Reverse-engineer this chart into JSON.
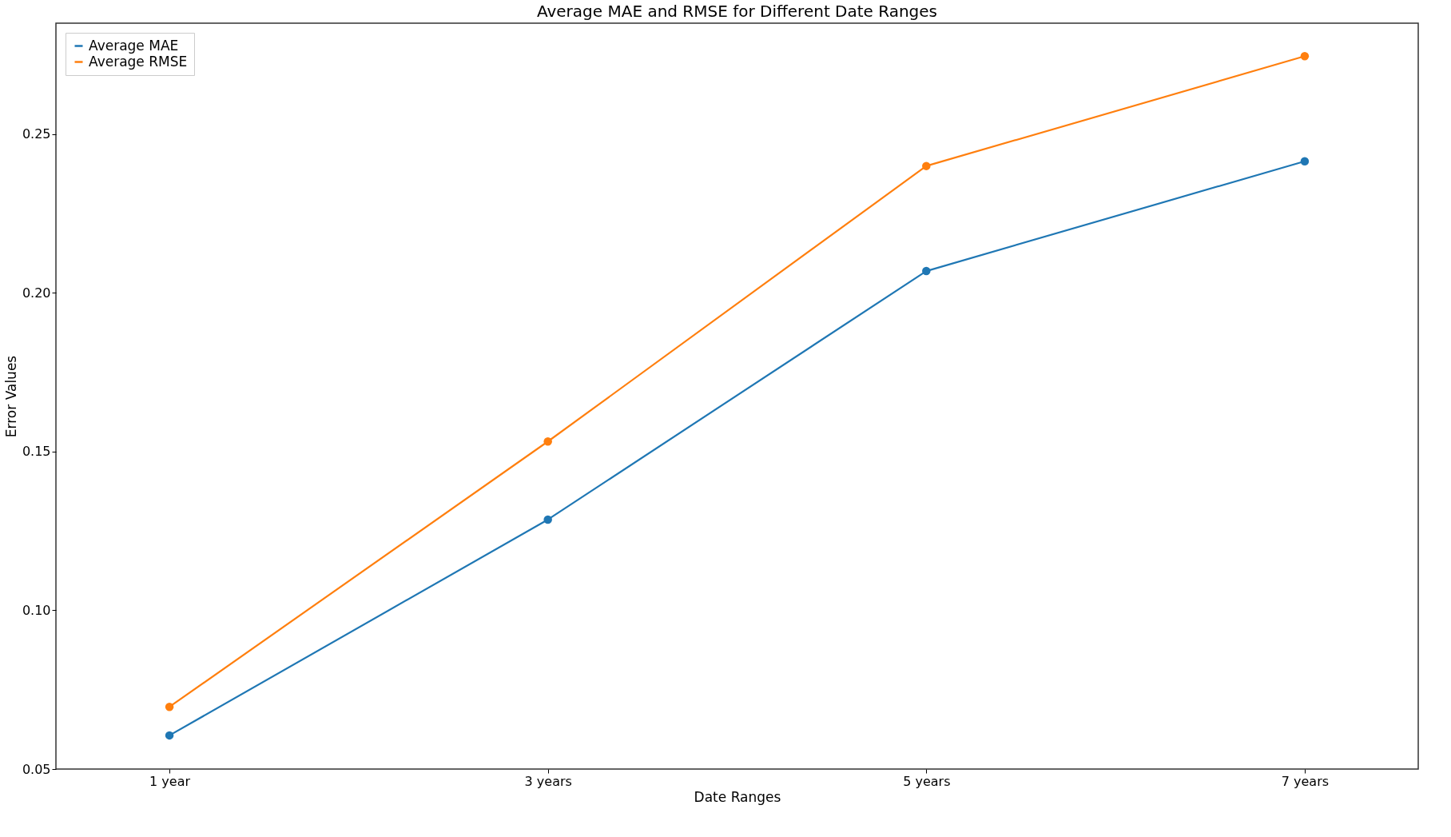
{
  "chart_data": {
    "type": "line",
    "title": "Average MAE and RMSE for Different Date Ranges",
    "xlabel": "Date Ranges",
    "ylabel": "Error Values",
    "categories": [
      "1 year",
      "3 years",
      "5 years",
      "7 years"
    ],
    "series": [
      {
        "name": "Average MAE",
        "color": "#1f77b4",
        "values": [
          0.0606,
          0.1286,
          0.2069,
          0.2415
        ]
      },
      {
        "name": "Average RMSE",
        "color": "#ff7f0e",
        "values": [
          0.0696,
          0.1532,
          0.24,
          0.2746
        ]
      }
    ],
    "ylim": [
      0.05,
      0.285
    ],
    "yticks": [
      0.05,
      {
        "value": 0.1,
        "label": "0.10"
      },
      0.15,
      {
        "value": 0.2,
        "label": "0.20"
      },
      0.25
    ],
    "grid": false,
    "legend": "top left",
    "marker": "circle",
    "line_style": "solid"
  }
}
